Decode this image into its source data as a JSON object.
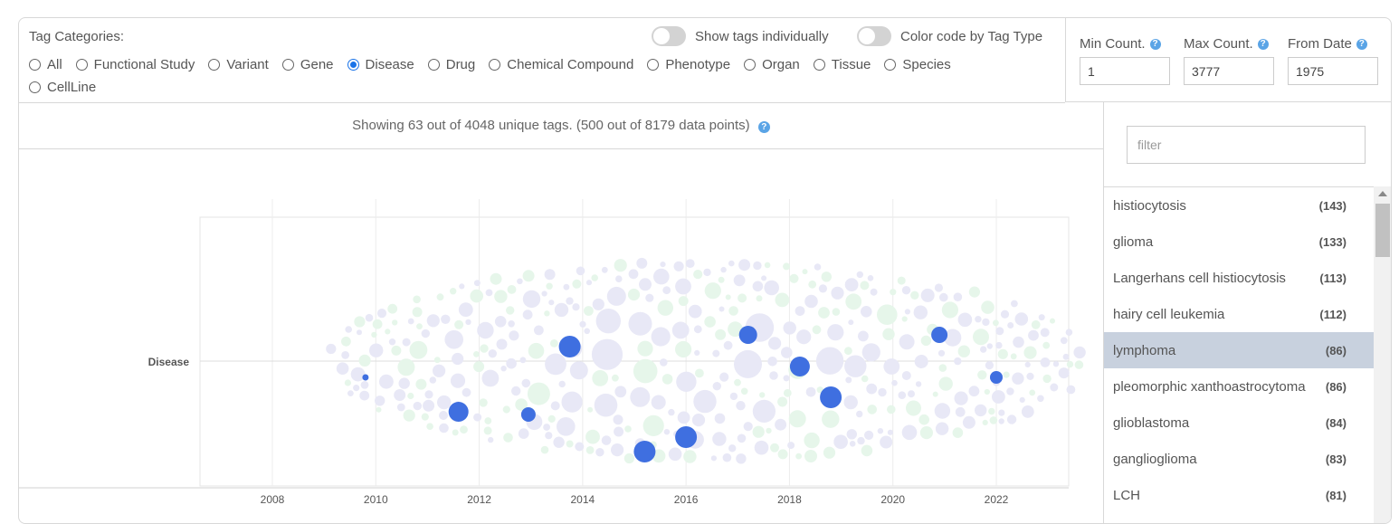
{
  "tag_categories": {
    "title": "Tag Categories:",
    "options": [
      "All",
      "Functional Study",
      "Variant",
      "Gene",
      "Disease",
      "Drug",
      "Chemical Compound",
      "Phenotype",
      "Organ",
      "Tissue",
      "Species",
      "CellLine"
    ],
    "selected": "Disease"
  },
  "toggles": {
    "show_individually": "Show tags individually",
    "color_code": "Color code by Tag Type"
  },
  "counts": {
    "min_label": "Min Count.",
    "max_label": "Max Count.",
    "from_label": "From Date",
    "min_value": "1",
    "max_value": "3777",
    "from_value": "1975"
  },
  "status": {
    "text": "Showing 63 out of 4048 unique tags. (500 out of 8179 data points)"
  },
  "sidebar": {
    "filter_placeholder": "filter",
    "tags": [
      {
        "name": "histiocytosis",
        "count": "(143)"
      },
      {
        "name": "glioma",
        "count": "(133)"
      },
      {
        "name": "Langerhans cell histiocytosis",
        "count": "(113)"
      },
      {
        "name": "hairy cell leukemia",
        "count": "(112)"
      },
      {
        "name": "lymphoma",
        "count": "(86)"
      },
      {
        "name": "pleomorphic xanthoastrocytoma",
        "count": "(86)"
      },
      {
        "name": "glioblastoma",
        "count": "(84)"
      },
      {
        "name": "ganglioglioma",
        "count": "(83)"
      },
      {
        "name": "LCH",
        "count": "(81)"
      }
    ],
    "selected_tag": "lymphoma"
  },
  "colors": {
    "accent": "#1a73e8",
    "highlight_bubble": "#3f6fe0",
    "bubble_lavender": "#e8e8f6",
    "bubble_mint": "#e6f6ea",
    "selected_row": "#c8d1de"
  },
  "chart_data": {
    "type": "scatter",
    "y_category": "Disease",
    "x_ticks": [
      "2008",
      "2010",
      "2012",
      "2014",
      "2016",
      "2018",
      "2020",
      "2022"
    ],
    "xlim": [
      2006.6,
      2023.4
    ],
    "highlighted_tag": "lymphoma",
    "highlighted_points": [
      {
        "x": 2009.8,
        "r": 3.5
      },
      {
        "x": 2011.6,
        "r": 11
      },
      {
        "x": 2012.95,
        "r": 8
      },
      {
        "x": 2013.75,
        "r": 12
      },
      {
        "x": 2015.2,
        "r": 12
      },
      {
        "x": 2016.0,
        "r": 12
      },
      {
        "x": 2017.2,
        "r": 10
      },
      {
        "x": 2018.2,
        "r": 11
      },
      {
        "x": 2018.8,
        "r": 12
      },
      {
        "x": 2020.9,
        "r": 9
      },
      {
        "x": 2022.0,
        "r": 7
      }
    ]
  }
}
